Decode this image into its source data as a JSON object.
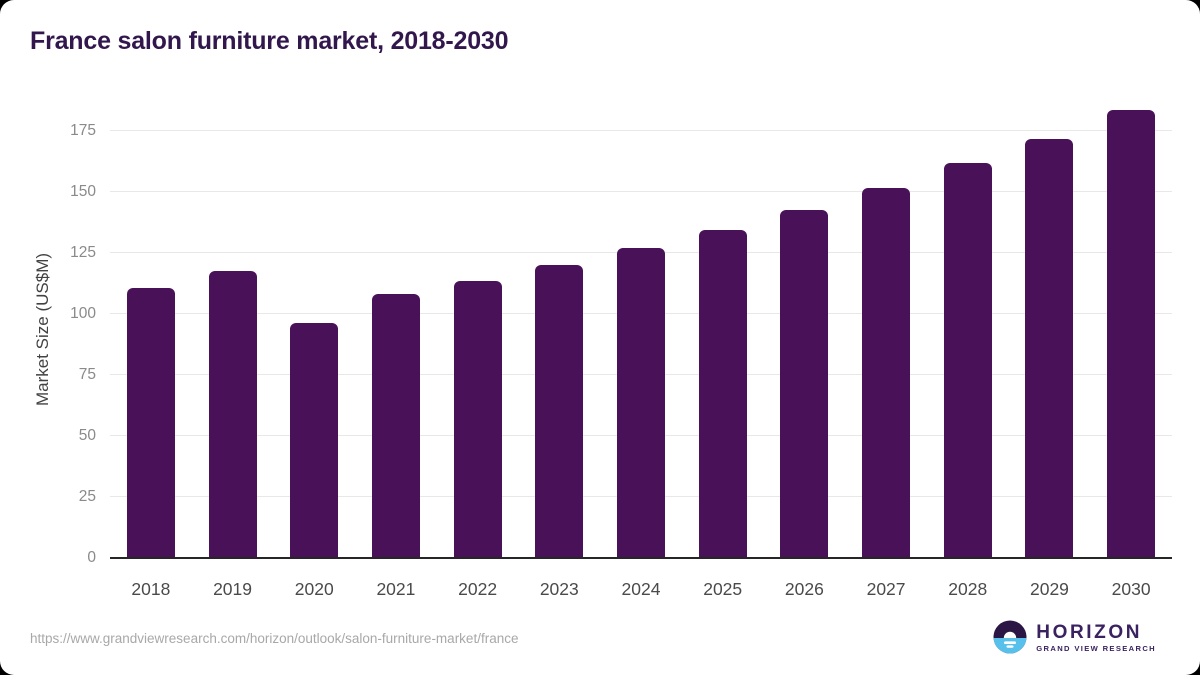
{
  "header": {
    "title": "France salon furniture market, 2018-2030"
  },
  "chart_data": {
    "type": "bar",
    "title": "France salon furniture market, 2018-2030",
    "categories": [
      "2018",
      "2019",
      "2020",
      "2021",
      "2022",
      "2023",
      "2024",
      "2025",
      "2026",
      "2027",
      "2028",
      "2029",
      "2030"
    ],
    "values": [
      110.7,
      117.5,
      96.4,
      108.0,
      113.4,
      120.0,
      127.1,
      134.6,
      142.7,
      151.7,
      161.7,
      171.9,
      183.7
    ],
    "xlabel": "",
    "ylabel": "Market Size (US$M)",
    "ylim": [
      0,
      187
    ],
    "yticks": [
      0,
      25,
      50,
      75,
      100,
      125,
      150,
      175
    ],
    "grid": true,
    "legend": "none",
    "bar_color": "#491157"
  },
  "footer": {
    "source_url": "https://www.grandviewresearch.com/horizon/outlook/salon-furniture-market/france",
    "logo": {
      "name": "HORIZON",
      "subtitle": "GRAND VIEW RESEARCH"
    }
  },
  "colors": {
    "title_text": "#32174d",
    "bar": "#491157",
    "gridline": "#e8e8e8",
    "axis_line": "#262626",
    "ytick_text": "#8a8a8a",
    "xtick_text": "#4a4a4a",
    "source_text": "#a8a8a8",
    "logo_purple": "#2a1544",
    "logo_blue": "#58c1eb",
    "card_bg": "#ffffff",
    "page_bg": "#000000"
  }
}
